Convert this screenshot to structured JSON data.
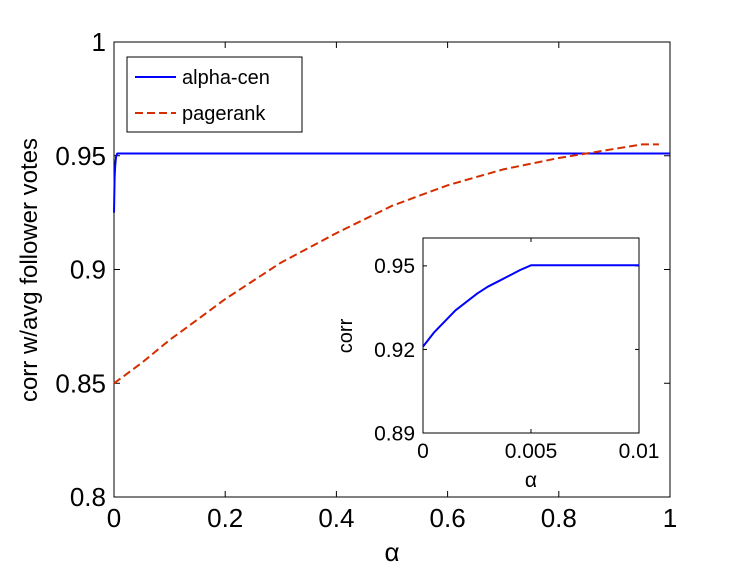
{
  "chart_data": [
    {
      "type": "line",
      "xlabel": "α",
      "ylabel": "corr w/avg follower votes",
      "xlim": [
        0,
        1
      ],
      "ylim": [
        0.8,
        1
      ],
      "xticks": [
        "0",
        "0.2",
        "0.4",
        "0.6",
        "0.8",
        "1"
      ],
      "yticks": [
        "0.8",
        "0.85",
        "0.9",
        "0.95",
        "1"
      ],
      "legend_position": "top-left",
      "series": [
        {
          "name": "alpha-cen",
          "color": "#0000ff",
          "style": "solid",
          "x": [
            0,
            0.001,
            0.002,
            0.003,
            0.004,
            0.006,
            0.01,
            0.05,
            0.2,
            0.4,
            0.6,
            0.8,
            1.0
          ],
          "y": [
            0.925,
            0.94,
            0.945,
            0.948,
            0.95,
            0.951,
            0.951,
            0.951,
            0.951,
            0.951,
            0.951,
            0.951,
            0.951
          ]
        },
        {
          "name": "pagerank",
          "color": "#d42e00",
          "style": "dashed",
          "x": [
            0,
            0.05,
            0.1,
            0.15,
            0.2,
            0.3,
            0.4,
            0.5,
            0.6,
            0.7,
            0.8,
            0.9,
            0.95,
            0.98
          ],
          "y": [
            0.85,
            0.859,
            0.869,
            0.878,
            0.887,
            0.903,
            0.916,
            0.928,
            0.937,
            0.944,
            0.949,
            0.953,
            0.955,
            0.955
          ]
        }
      ]
    },
    {
      "type": "line",
      "xlabel": "α",
      "ylabel": "corr",
      "xlim": [
        0,
        0.01
      ],
      "ylim": [
        0.89,
        0.96
      ],
      "xticks": [
        "0",
        "0.005",
        "0.01"
      ],
      "yticks": [
        "0.89",
        "0.92",
        "0.95"
      ],
      "series": [
        {
          "color": "#0000ff",
          "style": "solid",
          "x": [
            0,
            0.0005,
            0.001,
            0.0015,
            0.002,
            0.0025,
            0.003,
            0.0035,
            0.004,
            0.0045,
            0.005,
            0.0075,
            0.01
          ],
          "y": [
            0.921,
            0.926,
            0.93,
            0.934,
            0.937,
            0.94,
            0.9425,
            0.9445,
            0.9465,
            0.9485,
            0.9502,
            0.9502,
            0.9502
          ]
        }
      ]
    }
  ]
}
